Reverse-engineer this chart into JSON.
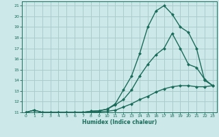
{
  "xlabel": "Humidex (Indice chaleur)",
  "bg_color": "#cce8e8",
  "grid_color": "#aacccc",
  "line_color": "#1a6b5a",
  "xlim": [
    -0.5,
    23.5
  ],
  "ylim": [
    11,
    21.4
  ],
  "xticks": [
    0,
    1,
    2,
    3,
    4,
    5,
    6,
    7,
    8,
    9,
    10,
    11,
    12,
    13,
    14,
    15,
    16,
    17,
    18,
    19,
    20,
    21,
    22,
    23
  ],
  "yticks": [
    11,
    12,
    13,
    14,
    15,
    16,
    17,
    18,
    19,
    20,
    21
  ],
  "line1_x": [
    0,
    1,
    2,
    3,
    4,
    5,
    6,
    7,
    8,
    9,
    10,
    11,
    12,
    13,
    14,
    15,
    16,
    17,
    18,
    19,
    20,
    21,
    22,
    23
  ],
  "line1_y": [
    11,
    11.2,
    11.0,
    11.0,
    11.0,
    11.0,
    11.0,
    11.0,
    11.0,
    11.05,
    11.1,
    11.2,
    11.5,
    11.8,
    12.2,
    12.5,
    12.9,
    13.2,
    13.4,
    13.5,
    13.5,
    13.4,
    13.4,
    13.5
  ],
  "line2_x": [
    0,
    1,
    2,
    3,
    4,
    5,
    6,
    7,
    8,
    9,
    10,
    11,
    12,
    13,
    14,
    15,
    16,
    17,
    18,
    19,
    20,
    21,
    22,
    23
  ],
  "line2_y": [
    11,
    11.2,
    11.0,
    11.0,
    11.0,
    11.0,
    11.0,
    11.0,
    11.1,
    11.15,
    11.3,
    11.7,
    12.2,
    13.1,
    14.4,
    15.5,
    16.4,
    17.0,
    18.4,
    17.0,
    15.5,
    15.2,
    14.1,
    13.5
  ],
  "line3_x": [
    0,
    1,
    2,
    3,
    4,
    5,
    6,
    7,
    8,
    9,
    10,
    11,
    12,
    13,
    14,
    15,
    16,
    17,
    18,
    19,
    20,
    21,
    22,
    23
  ],
  "line3_y": [
    11,
    11.2,
    11.0,
    11.0,
    11.0,
    11.0,
    11.0,
    11.0,
    11.1,
    11.15,
    11.3,
    11.8,
    13.1,
    14.4,
    16.5,
    19.0,
    20.5,
    21.0,
    20.2,
    19.0,
    18.5,
    17.0,
    14.0,
    13.5
  ]
}
